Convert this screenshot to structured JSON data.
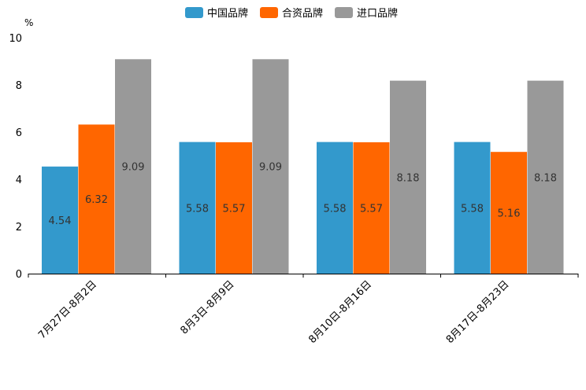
{
  "chart_data": {
    "type": "bar",
    "title": "",
    "xlabel": "",
    "ylabel": "%",
    "ylim": [
      0,
      10
    ],
    "yticks": [
      0,
      2,
      4,
      6,
      8,
      10
    ],
    "categories": [
      "7月27日-8月2日",
      "8月3日-8月9日",
      "8月10日-8月16日",
      "8月17日-8月23日"
    ],
    "series": [
      {
        "name": "中国品牌",
        "color": "#3399cc",
        "values": [
          4.54,
          5.58,
          5.58,
          5.58
        ]
      },
      {
        "name": "合资品牌",
        "color": "#ff6600",
        "values": [
          6.32,
          5.57,
          5.57,
          5.16
        ]
      },
      {
        "name": "进口品牌",
        "color": "#999999",
        "values": [
          9.09,
          9.09,
          8.18,
          8.18
        ]
      }
    ],
    "legend_position": "top-center"
  }
}
